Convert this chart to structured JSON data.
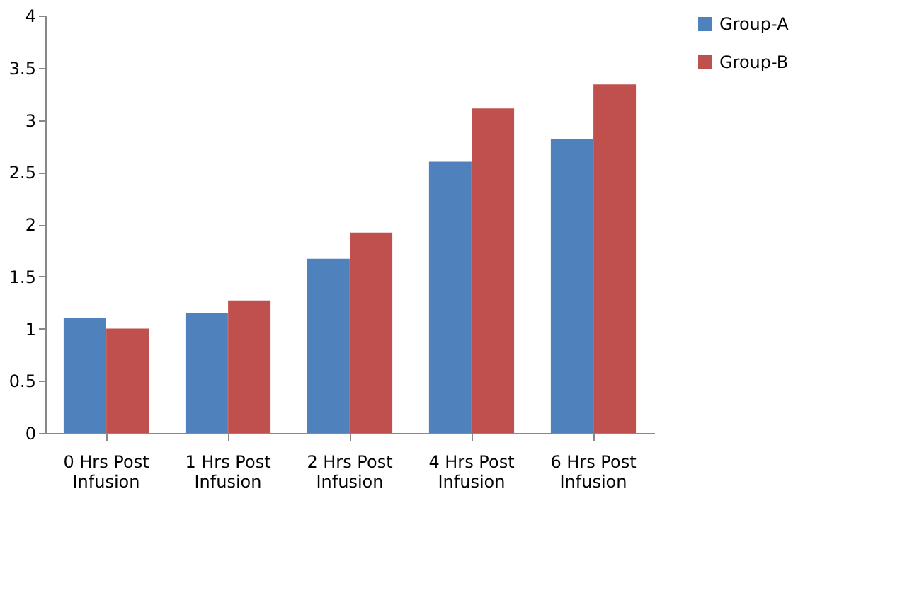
{
  "chart_data": {
    "type": "bar",
    "categories": [
      "0 Hrs Post Infusion",
      "1 Hrs Post Infusion",
      "2 Hrs Post Infusion",
      "4 Hrs Post Infusion",
      "6 Hrs Post Infusion"
    ],
    "series": [
      {
        "name": "Group-A",
        "color": "#4f81bd",
        "values": [
          1.1,
          1.15,
          1.67,
          2.6,
          2.82
        ]
      },
      {
        "name": "Group-B",
        "color": "#c0504d",
        "values": [
          1.0,
          1.27,
          1.92,
          3.11,
          3.34
        ]
      }
    ],
    "ylim": [
      0,
      4
    ],
    "yticks": [
      0,
      0.5,
      1,
      1.5,
      2,
      2.5,
      3,
      3.5,
      4
    ],
    "grid": false,
    "legend": "right"
  }
}
